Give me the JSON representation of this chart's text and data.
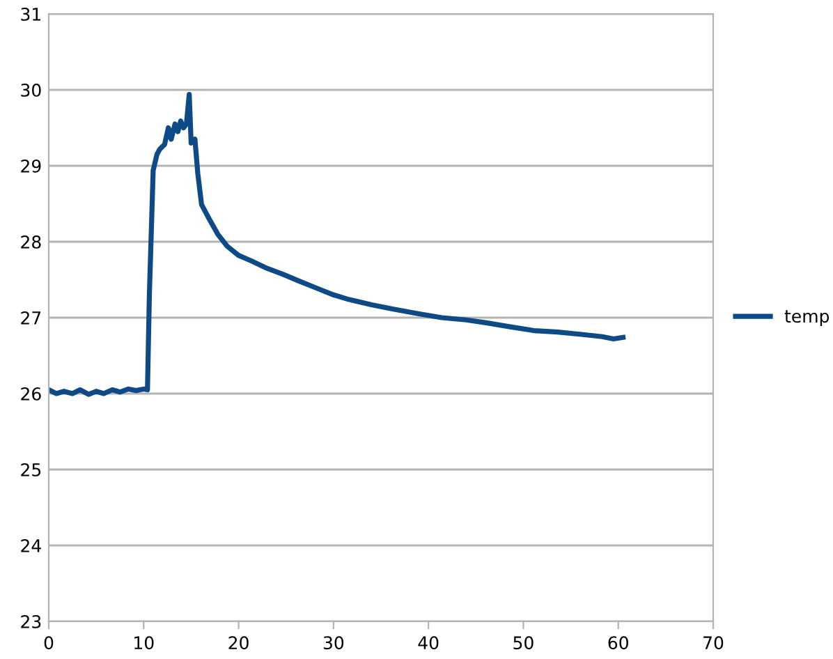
{
  "chart_data": {
    "type": "line",
    "x": [
      0,
      0.8,
      1.6,
      2.5,
      3.3,
      4.2,
      5.0,
      5.8,
      6.7,
      7.5,
      8.4,
      9.2,
      10.0,
      10.4,
      10.6,
      11.0,
      11.4,
      11.7,
      12.2,
      12.6,
      12.9,
      13.3,
      13.6,
      13.9,
      14.2,
      14.5,
      14.8,
      15.0,
      15.4,
      15.7,
      16.1,
      16.9,
      17.8,
      18.8,
      20.0,
      21.3,
      23.0,
      24.7,
      26.4,
      28.2,
      30.0,
      31.6,
      34.0,
      36.4,
      39.0,
      41.4,
      44.0,
      46.2,
      48.6,
      51.1,
      53.6,
      56.1,
      58.3,
      59.5,
      60.5
    ],
    "series": [
      {
        "name": "temp",
        "color": "#0e4a85",
        "values": [
          26.05,
          26.0,
          26.03,
          26.0,
          26.05,
          25.99,
          26.03,
          26.0,
          26.05,
          26.02,
          26.06,
          26.04,
          26.06,
          26.05,
          27.3,
          28.94,
          29.15,
          29.22,
          29.28,
          29.5,
          29.35,
          29.55,
          29.45,
          29.59,
          29.5,
          29.55,
          29.94,
          29.3,
          29.35,
          28.9,
          28.49,
          28.3,
          28.1,
          27.94,
          27.82,
          27.75,
          27.65,
          27.57,
          27.48,
          27.39,
          27.3,
          27.24,
          27.17,
          27.11,
          27.05,
          27.0,
          26.97,
          26.93,
          26.88,
          26.83,
          26.81,
          26.78,
          26.75,
          26.72,
          26.74
        ]
      }
    ],
    "xlim": [
      0,
      70
    ],
    "xticks": [
      0,
      10,
      20,
      30,
      40,
      50,
      60,
      70
    ],
    "ylim": [
      23,
      31
    ],
    "yticks": [
      23,
      24,
      25,
      26,
      27,
      28,
      29,
      30,
      31
    ],
    "grid": "y",
    "legend": "right",
    "marker": "none",
    "line_style": "solid"
  }
}
